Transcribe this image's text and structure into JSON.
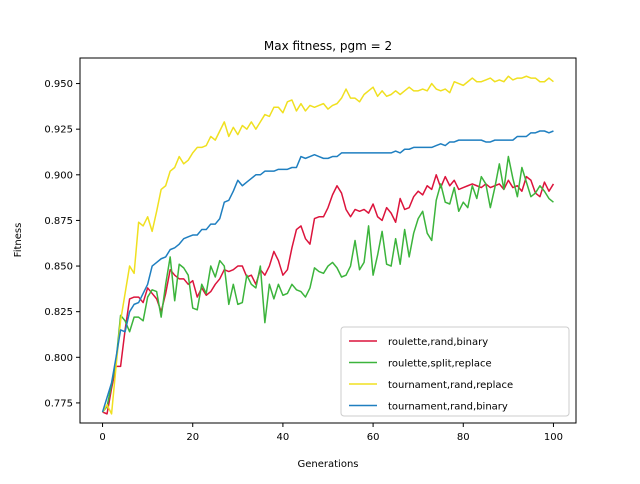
{
  "chart_data": {
    "type": "line",
    "title": "Max fitness, pgm = 2",
    "xlabel": "Generations",
    "ylabel": "Fitness",
    "xlim": [
      -5,
      105
    ],
    "ylim": [
      0.764,
      0.964
    ],
    "xticks": [
      0,
      20,
      40,
      60,
      80,
      100
    ],
    "yticks": [
      0.775,
      0.8,
      0.825,
      0.85,
      0.875,
      0.9,
      0.925,
      0.95
    ],
    "ytick_labels": [
      "0.775",
      "0.800",
      "0.825",
      "0.850",
      "0.875",
      "0.900",
      "0.925",
      "0.950"
    ],
    "grid": false,
    "legend_position": "lower-right",
    "series": [
      {
        "name": "roulette,rand,binary",
        "color": "#dc143c",
        "values": [
          0.77,
          0.769,
          0.783,
          0.795,
          0.795,
          0.815,
          0.832,
          0.833,
          0.833,
          0.83,
          0.838,
          0.835,
          0.832,
          0.825,
          0.835,
          0.848,
          0.845,
          0.843,
          0.843,
          0.84,
          0.842,
          0.833,
          0.838,
          0.834,
          0.836,
          0.84,
          0.843,
          0.848,
          0.847,
          0.848,
          0.85,
          0.85,
          0.844,
          0.845,
          0.84,
          0.848,
          0.845,
          0.85,
          0.858,
          0.853,
          0.845,
          0.848,
          0.86,
          0.87,
          0.872,
          0.865,
          0.862,
          0.876,
          0.877,
          0.877,
          0.882,
          0.889,
          0.894,
          0.89,
          0.881,
          0.877,
          0.881,
          0.88,
          0.881,
          0.879,
          0.884,
          0.877,
          0.875,
          0.882,
          0.879,
          0.874,
          0.887,
          0.881,
          0.882,
          0.888,
          0.891,
          0.889,
          0.894,
          0.892,
          0.9,
          0.893,
          0.899,
          0.894,
          0.897,
          0.892,
          0.893,
          0.894,
          0.895,
          0.894,
          0.893,
          0.895,
          0.893,
          0.894,
          0.895,
          0.892,
          0.897,
          0.893,
          0.894,
          0.891,
          0.899,
          0.897,
          0.89,
          0.888,
          0.896,
          0.891,
          0.895
        ]
      },
      {
        "name": "roulette,split,replace",
        "color": "#3cb43c",
        "values": [
          0.77,
          0.773,
          0.785,
          0.798,
          0.823,
          0.82,
          0.814,
          0.822,
          0.822,
          0.82,
          0.833,
          0.837,
          0.836,
          0.822,
          0.84,
          0.855,
          0.831,
          0.851,
          0.849,
          0.845,
          0.827,
          0.826,
          0.84,
          0.835,
          0.85,
          0.844,
          0.853,
          0.85,
          0.829,
          0.84,
          0.829,
          0.83,
          0.845,
          0.84,
          0.838,
          0.85,
          0.819,
          0.84,
          0.832,
          0.84,
          0.834,
          0.835,
          0.84,
          0.837,
          0.836,
          0.833,
          0.838,
          0.849,
          0.847,
          0.846,
          0.85,
          0.852,
          0.849,
          0.844,
          0.845,
          0.85,
          0.864,
          0.848,
          0.852,
          0.872,
          0.845,
          0.856,
          0.869,
          0.851,
          0.85,
          0.865,
          0.851,
          0.87,
          0.855,
          0.868,
          0.876,
          0.88,
          0.868,
          0.864,
          0.886,
          0.895,
          0.885,
          0.884,
          0.893,
          0.88,
          0.885,
          0.882,
          0.894,
          0.887,
          0.899,
          0.895,
          0.882,
          0.893,
          0.906,
          0.892,
          0.91,
          0.898,
          0.888,
          0.904,
          0.896,
          0.888,
          0.89,
          0.894,
          0.891,
          0.887,
          0.885
        ]
      },
      {
        "name": "tournament,rand,replace",
        "color": "#f0e020",
        "values": [
          0.77,
          0.774,
          0.769,
          0.795,
          0.82,
          0.835,
          0.85,
          0.846,
          0.874,
          0.872,
          0.877,
          0.869,
          0.88,
          0.892,
          0.894,
          0.902,
          0.904,
          0.91,
          0.906,
          0.908,
          0.912,
          0.915,
          0.915,
          0.916,
          0.921,
          0.919,
          0.924,
          0.929,
          0.921,
          0.926,
          0.922,
          0.927,
          0.925,
          0.929,
          0.925,
          0.929,
          0.933,
          0.932,
          0.937,
          0.937,
          0.934,
          0.94,
          0.941,
          0.935,
          0.939,
          0.935,
          0.938,
          0.937,
          0.938,
          0.939,
          0.936,
          0.938,
          0.939,
          0.942,
          0.947,
          0.942,
          0.942,
          0.94,
          0.944,
          0.946,
          0.948,
          0.943,
          0.946,
          0.943,
          0.944,
          0.946,
          0.944,
          0.946,
          0.948,
          0.946,
          0.946,
          0.947,
          0.946,
          0.95,
          0.947,
          0.946,
          0.947,
          0.945,
          0.951,
          0.95,
          0.949,
          0.951,
          0.953,
          0.951,
          0.951,
          0.952,
          0.953,
          0.951,
          0.952,
          0.951,
          0.954,
          0.952,
          0.953,
          0.953,
          0.954,
          0.953,
          0.953,
          0.951,
          0.951,
          0.953,
          0.951
        ]
      },
      {
        "name": "tournament,rand,binary",
        "color": "#1f7fc0",
        "values": [
          0.77,
          0.778,
          0.786,
          0.8,
          0.815,
          0.814,
          0.825,
          0.829,
          0.83,
          0.835,
          0.84,
          0.85,
          0.852,
          0.854,
          0.855,
          0.859,
          0.86,
          0.862,
          0.865,
          0.866,
          0.867,
          0.867,
          0.87,
          0.87,
          0.873,
          0.873,
          0.876,
          0.885,
          0.886,
          0.891,
          0.897,
          0.894,
          0.896,
          0.898,
          0.9,
          0.9,
          0.902,
          0.902,
          0.902,
          0.903,
          0.903,
          0.903,
          0.904,
          0.904,
          0.91,
          0.909,
          0.91,
          0.911,
          0.91,
          0.909,
          0.909,
          0.91,
          0.91,
          0.912,
          0.912,
          0.912,
          0.912,
          0.912,
          0.912,
          0.912,
          0.912,
          0.912,
          0.912,
          0.912,
          0.912,
          0.913,
          0.912,
          0.914,
          0.914,
          0.915,
          0.915,
          0.915,
          0.915,
          0.915,
          0.916,
          0.917,
          0.916,
          0.918,
          0.918,
          0.919,
          0.919,
          0.919,
          0.919,
          0.919,
          0.919,
          0.918,
          0.918,
          0.919,
          0.919,
          0.919,
          0.919,
          0.919,
          0.921,
          0.921,
          0.921,
          0.923,
          0.923,
          0.924,
          0.924,
          0.923,
          0.924
        ]
      }
    ]
  }
}
